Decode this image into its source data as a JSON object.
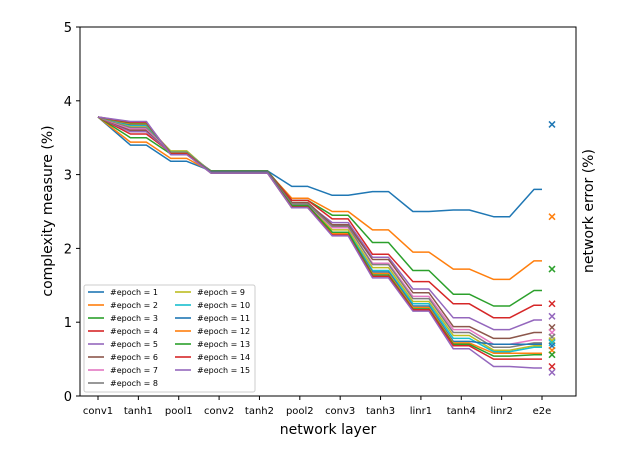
{
  "chart_data": {
    "type": "line",
    "xlabel": "network layer",
    "ylabel": "complexity measure (%)",
    "y2label": "network error (%)",
    "ylim": [
      0,
      5
    ],
    "yticks": [
      "0",
      "1",
      "2",
      "3",
      "4",
      "5"
    ],
    "categories": [
      "conv1",
      "tanh1",
      "pool1",
      "conv2",
      "tanh2",
      "pool2",
      "conv3",
      "tanh3",
      "linr1",
      "tanh4",
      "linr2",
      "e2e"
    ],
    "grid": false,
    "legend_position": "bottom-left",
    "legend_columns": 2,
    "series": [
      {
        "name": "#epoch = 1",
        "color": "#1f77b4",
        "values": [
          3.78,
          3.4,
          3.18,
          3.05,
          3.05,
          2.84,
          2.72,
          2.77,
          2.5,
          2.52,
          2.43,
          2.8
        ],
        "e2e": 3.68
      },
      {
        "name": "#epoch = 2",
        "color": "#ff7f0e",
        "values": [
          3.78,
          3.44,
          3.22,
          3.04,
          3.04,
          2.68,
          2.5,
          2.25,
          1.95,
          1.72,
          1.58,
          1.83
        ],
        "e2e": 2.43
      },
      {
        "name": "#epoch = 3",
        "color": "#2ca02c",
        "values": [
          3.78,
          3.5,
          3.28,
          3.05,
          3.05,
          2.65,
          2.45,
          2.08,
          1.7,
          1.38,
          1.22,
          1.43
        ],
        "e2e": 1.72
      },
      {
        "name": "#epoch = 4",
        "color": "#d62728",
        "values": [
          3.78,
          3.55,
          3.3,
          3.04,
          3.04,
          2.65,
          2.4,
          1.92,
          1.55,
          1.25,
          1.06,
          1.23
        ],
        "e2e": 1.25
      },
      {
        "name": "#epoch = 5",
        "color": "#9467bd",
        "values": [
          3.78,
          3.58,
          3.3,
          3.04,
          3.04,
          2.6,
          2.35,
          1.88,
          1.45,
          1.06,
          0.9,
          1.03
        ],
        "e2e": 1.08
      },
      {
        "name": "#epoch = 6",
        "color": "#8c564b",
        "values": [
          3.78,
          3.6,
          3.31,
          3.04,
          3.04,
          2.62,
          2.32,
          1.85,
          1.4,
          0.94,
          0.78,
          0.86
        ],
        "e2e": 0.93
      },
      {
        "name": "#epoch = 7",
        "color": "#e377c2",
        "values": [
          3.78,
          3.62,
          3.31,
          3.03,
          3.03,
          2.58,
          2.28,
          1.8,
          1.35,
          0.9,
          0.7,
          0.76
        ],
        "e2e": 0.86
      },
      {
        "name": "#epoch = 8",
        "color": "#7f7f7f",
        "values": [
          3.78,
          3.64,
          3.32,
          3.03,
          3.03,
          2.6,
          2.3,
          1.78,
          1.32,
          0.86,
          0.66,
          0.72
        ],
        "e2e": 0.8
      },
      {
        "name": "#epoch = 9",
        "color": "#bcbd22",
        "values": [
          3.78,
          3.66,
          3.32,
          3.03,
          3.03,
          2.57,
          2.25,
          1.74,
          1.28,
          0.82,
          0.62,
          0.68
        ],
        "e2e": 0.75
      },
      {
        "name": "#epoch = 10",
        "color": "#17becf",
        "values": [
          3.78,
          3.67,
          3.3,
          3.03,
          3.03,
          2.55,
          2.22,
          1.7,
          1.25,
          0.78,
          0.6,
          0.66
        ],
        "e2e": 0.72
      },
      {
        "name": "#epoch = 11",
        "color": "#1f77b4",
        "values": [
          3.78,
          3.68,
          3.3,
          3.03,
          3.03,
          2.57,
          2.2,
          1.68,
          1.22,
          0.74,
          0.7,
          0.7
        ],
        "e2e": 0.68
      },
      {
        "name": "#epoch = 12",
        "color": "#ff7f0e",
        "values": [
          3.78,
          3.69,
          3.29,
          3.02,
          3.02,
          2.55,
          2.2,
          1.66,
          1.2,
          0.72,
          0.58,
          0.58
        ],
        "e2e": 0.62
      },
      {
        "name": "#epoch = 13",
        "color": "#2ca02c",
        "values": [
          3.78,
          3.7,
          3.28,
          3.02,
          3.02,
          2.58,
          2.22,
          1.64,
          1.18,
          0.7,
          0.54,
          0.56
        ],
        "e2e": 0.56
      },
      {
        "name": "#epoch = 14",
        "color": "#d62728",
        "values": [
          3.78,
          3.71,
          3.28,
          3.02,
          3.02,
          2.56,
          2.18,
          1.62,
          1.17,
          0.68,
          0.5,
          0.5
        ],
        "e2e": 0.4
      },
      {
        "name": "#epoch = 15",
        "color": "#9467bd",
        "values": [
          3.78,
          3.72,
          3.27,
          3.02,
          3.02,
          2.55,
          2.17,
          1.6,
          1.15,
          0.64,
          0.4,
          0.38
        ],
        "e2e": 0.32
      }
    ]
  }
}
